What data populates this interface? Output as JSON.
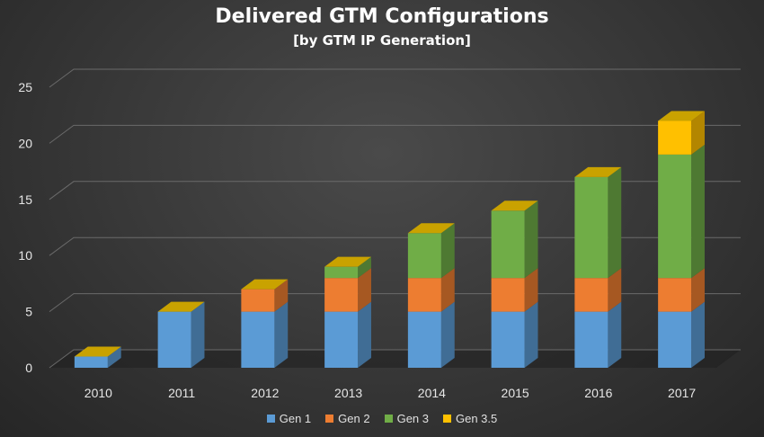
{
  "chart_data": {
    "type": "bar",
    "stacked": true,
    "title": "Delivered GTM Configurations",
    "subtitle": "[by GTM IP Generation]",
    "categories": [
      "2010",
      "2011",
      "2012",
      "2013",
      "2014",
      "2015",
      "2016",
      "2017"
    ],
    "series": [
      {
        "name": "Gen 1",
        "color": "#5b9bd5",
        "values": [
          1,
          5,
          5,
          5,
          5,
          5,
          5,
          5
        ]
      },
      {
        "name": "Gen 2",
        "color": "#ed7d31",
        "values": [
          0,
          0,
          2,
          3,
          3,
          3,
          3,
          3
        ]
      },
      {
        "name": "Gen 3",
        "color": "#70ad47",
        "values": [
          0,
          0,
          0,
          1,
          4,
          6,
          9,
          11
        ]
      },
      {
        "name": "Gen 3.5",
        "color": "#ffc000",
        "values": [
          0,
          0,
          0,
          0,
          0,
          0,
          0,
          3
        ]
      }
    ],
    "yticks": [
      "0",
      "5",
      "10",
      "15",
      "20",
      "25"
    ],
    "ylim": [
      0,
      25
    ],
    "grid": true,
    "legend_position": "bottom"
  }
}
